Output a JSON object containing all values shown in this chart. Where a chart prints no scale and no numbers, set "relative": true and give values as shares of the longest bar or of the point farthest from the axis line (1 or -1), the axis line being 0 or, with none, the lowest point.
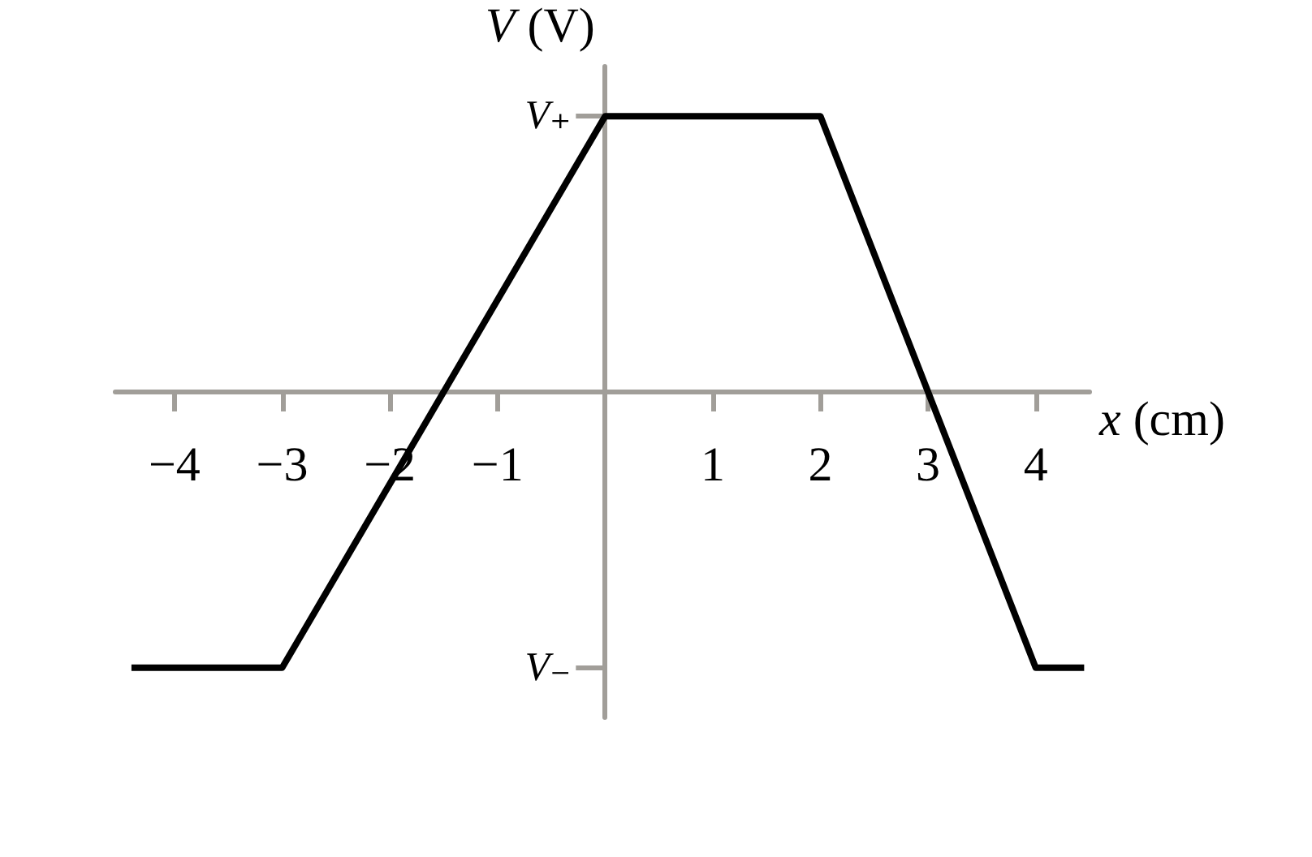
{
  "chart_data": {
    "type": "line",
    "xlabel": "x (cm)",
    "ylabel": "V (V)",
    "x": [
      -4.4,
      -3,
      0,
      2,
      4,
      4.45
    ],
    "series": [
      {
        "color": "#000000",
        "values": [
          -1,
          -1,
          1,
          1,
          -1,
          -1
        ]
      }
    ],
    "relative": true,
    "xlim": [
      -4.55,
      4.5
    ],
    "xticks": [
      {
        "value": -4,
        "label": "−4"
      },
      {
        "value": -3,
        "label": "−3"
      },
      {
        "value": -2,
        "label": "−2"
      },
      {
        "value": -1,
        "label": "−1"
      },
      1,
      2,
      3,
      4
    ],
    "annotations": [
      "V₊",
      "V₋"
    ],
    "grid": false
  }
}
